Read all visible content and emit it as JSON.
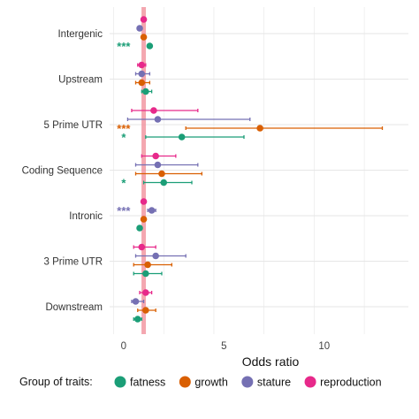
{
  "chart_data": {
    "type": "scatter",
    "subtype": "forest-plot",
    "title": "",
    "xlabel": "Odds ratio",
    "ylabel": "",
    "xlim": [
      -0.7,
      14.2
    ],
    "xticks": [
      0,
      5,
      10
    ],
    "reference_line": 1,
    "grid": true,
    "legend": {
      "title": "Group of traits:",
      "placement": "bottom"
    },
    "categories": [
      "Intergenic",
      "Upstream",
      "5 Prime UTR",
      "Coding Sequence",
      "Intronic",
      "3 Prime UTR",
      "Downstream"
    ],
    "series": [
      {
        "name": "fatness",
        "color": "#1b9e77",
        "or": [
          1.3,
          1.1,
          2.9,
          2.0,
          0.8,
          1.1,
          0.7
        ],
        "low": [
          1.2,
          0.9,
          1.1,
          1.0,
          0.7,
          0.5,
          0.5
        ],
        "high": [
          1.4,
          1.4,
          6.0,
          3.4,
          0.9,
          1.9,
          0.9
        ],
        "stars": [
          "***",
          "",
          "*",
          "*",
          "",
          "",
          ""
        ]
      },
      {
        "name": "growth",
        "color": "#d95f02",
        "or": [
          1.0,
          0.9,
          6.8,
          1.9,
          1.0,
          1.2,
          1.1
        ],
        "low": [
          0.9,
          0.6,
          3.1,
          0.6,
          0.9,
          0.5,
          0.7
        ],
        "high": [
          1.1,
          1.3,
          12.9,
          3.9,
          1.1,
          2.4,
          1.6
        ],
        "stars": [
          "",
          "",
          "***",
          "",
          "",
          "",
          ""
        ]
      },
      {
        "name": "stature",
        "color": "#7570b3",
        "or": [
          0.8,
          0.9,
          1.7,
          1.7,
          1.4,
          1.6,
          0.6
        ],
        "low": [
          0.7,
          0.6,
          0.2,
          0.6,
          1.2,
          0.6,
          0.4
        ],
        "high": [
          0.9,
          1.3,
          6.3,
          3.7,
          1.6,
          3.1,
          1.0
        ],
        "stars": [
          "",
          "",
          "",
          "",
          "***",
          "",
          ""
        ]
      },
      {
        "name": "reproduction",
        "color": "#e7298a",
        "or": [
          1.0,
          0.9,
          1.5,
          1.6,
          1.0,
          0.9,
          1.1
        ],
        "low": [
          0.9,
          0.7,
          0.4,
          0.9,
          0.9,
          0.5,
          0.8
        ],
        "high": [
          1.1,
          1.1,
          3.7,
          2.6,
          1.1,
          1.6,
          1.4
        ],
        "stars": [
          "",
          "",
          "",
          "",
          "",
          "",
          ""
        ]
      }
    ]
  }
}
